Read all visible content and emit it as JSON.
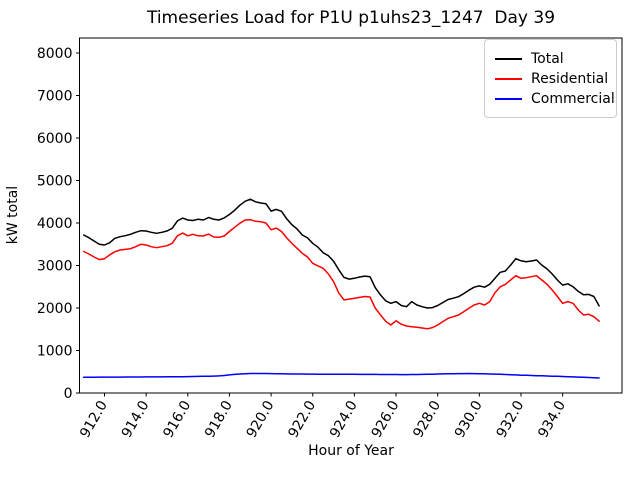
{
  "window": {
    "background": "#ffffff"
  },
  "chart_data": {
    "type": "line",
    "title": "Timeseries Load for P1U p1uhs23_1247  Day 39",
    "xlabel": "Hour of Year",
    "ylabel": "kW total",
    "grid": false,
    "legend_position": "upper right",
    "x_tick_rotation_deg": 60,
    "xlim": [
      910.8,
      936.85
    ],
    "ylim": [
      0,
      8353
    ],
    "x_ticks": [
      "912.0",
      "914.0",
      "916.0",
      "918.0",
      "920.0",
      "922.0",
      "924.0",
      "926.0",
      "928.0",
      "930.0",
      "932.0",
      "934.0"
    ],
    "y_ticks": [
      "0",
      "1000",
      "2000",
      "3000",
      "4000",
      "5000",
      "6000",
      "7000",
      "8000"
    ],
    "x": [
      911.0,
      911.25,
      911.5,
      911.75,
      912.0,
      912.25,
      912.5,
      912.75,
      913.0,
      913.25,
      913.5,
      913.75,
      914.0,
      914.25,
      914.5,
      914.75,
      915.0,
      915.25,
      915.5,
      915.75,
      916.0,
      916.25,
      916.5,
      916.75,
      917.0,
      917.25,
      917.5,
      917.75,
      918.0,
      918.25,
      918.5,
      918.75,
      919.0,
      919.25,
      919.5,
      919.75,
      920.0,
      920.25,
      920.5,
      920.75,
      921.0,
      921.25,
      921.5,
      921.75,
      922.0,
      922.25,
      922.5,
      922.75,
      923.0,
      923.25,
      923.5,
      923.75,
      924.0,
      924.25,
      924.5,
      924.75,
      925.0,
      925.25,
      925.5,
      925.75,
      926.0,
      926.25,
      926.5,
      926.75,
      927.0,
      927.25,
      927.5,
      927.75,
      928.0,
      928.25,
      928.5,
      928.75,
      929.0,
      929.25,
      929.5,
      929.75,
      930.0,
      930.25,
      930.5,
      930.75,
      931.0,
      931.25,
      931.5,
      931.75,
      932.0,
      932.25,
      932.5,
      932.75,
      933.0,
      933.25,
      933.5,
      933.75,
      934.0,
      934.25,
      934.5,
      934.75,
      935.0,
      935.25,
      935.5,
      935.75
    ],
    "series": [
      {
        "name": "Total",
        "color": "#000000",
        "values": [
          3718,
          3655,
          3577,
          3500,
          3482,
          3537,
          3640,
          3678,
          3702,
          3734,
          3781,
          3820,
          3812,
          3781,
          3757,
          3781,
          3812,
          3875,
          4050,
          4115,
          4070,
          4060,
          4090,
          4071,
          4130,
          4087,
          4071,
          4120,
          4200,
          4300,
          4420,
          4510,
          4560,
          4500,
          4471,
          4455,
          4280,
          4320,
          4275,
          4100,
          3960,
          3860,
          3718,
          3650,
          3522,
          3430,
          3300,
          3230,
          3100,
          2900,
          2720,
          2680,
          2700,
          2730,
          2750,
          2737,
          2480,
          2310,
          2170,
          2110,
          2150,
          2060,
          2030,
          2150,
          2070,
          2030,
          2000,
          2010,
          2060,
          2130,
          2200,
          2230,
          2265,
          2340,
          2420,
          2490,
          2520,
          2490,
          2560,
          2700,
          2840,
          2870,
          3010,
          3160,
          3110,
          3090,
          3105,
          3130,
          3010,
          2920,
          2800,
          2660,
          2540,
          2570,
          2500,
          2390,
          2310,
          2320,
          2270,
          2050
        ]
      },
      {
        "name": "Residential",
        "color": "#ff0000",
        "values": [
          3330,
          3270,
          3200,
          3140,
          3160,
          3250,
          3325,
          3365,
          3380,
          3396,
          3443,
          3499,
          3482,
          3443,
          3420,
          3443,
          3467,
          3522,
          3700,
          3762,
          3700,
          3734,
          3700,
          3694,
          3740,
          3670,
          3663,
          3694,
          3800,
          3900,
          3995,
          4070,
          4078,
          4040,
          4030,
          4000,
          3843,
          3880,
          3800,
          3650,
          3520,
          3404,
          3286,
          3200,
          3051,
          2990,
          2934,
          2800,
          2620,
          2350,
          2190,
          2210,
          2230,
          2250,
          2270,
          2260,
          2000,
          1840,
          1690,
          1600,
          1700,
          1620,
          1576,
          1560,
          1545,
          1530,
          1510,
          1540,
          1600,
          1680,
          1757,
          1796,
          1835,
          1914,
          1992,
          2071,
          2110,
          2071,
          2150,
          2360,
          2500,
          2557,
          2660,
          2760,
          2700,
          2714,
          2737,
          2760,
          2659,
          2557,
          2424,
          2270,
          2110,
          2150,
          2110,
          1953,
          1835,
          1851,
          1796,
          1690
        ]
      },
      {
        "name": "Commercial",
        "color": "#0000ff",
        "values": [
          370,
          371,
          372,
          373,
          374,
          374,
          375,
          375,
          376,
          376,
          377,
          377,
          378,
          379,
          380,
          380,
          381,
          382,
          383,
          384,
          386,
          388,
          390,
          392,
          394,
          398,
          402,
          412,
          425,
          437,
          448,
          454,
          458,
          459,
          460,
          458,
          456,
          454,
          452,
          450,
          448,
          447,
          446,
          445,
          444,
          443,
          442,
          441,
          441,
          440,
          440,
          439,
          439,
          438,
          438,
          437,
          437,
          436,
          436,
          435,
          435,
          434,
          434,
          435,
          436,
          438,
          440,
          443,
          446,
          449,
          452,
          454,
          456,
          457,
          458,
          457,
          455,
          452,
          448,
          444,
          440,
          435,
          430,
          425,
          420,
          416,
          412,
          408,
          404,
          400,
          396,
          392,
          388,
          384,
          380,
          375,
          370,
          365,
          360,
          352
        ]
      }
    ]
  }
}
